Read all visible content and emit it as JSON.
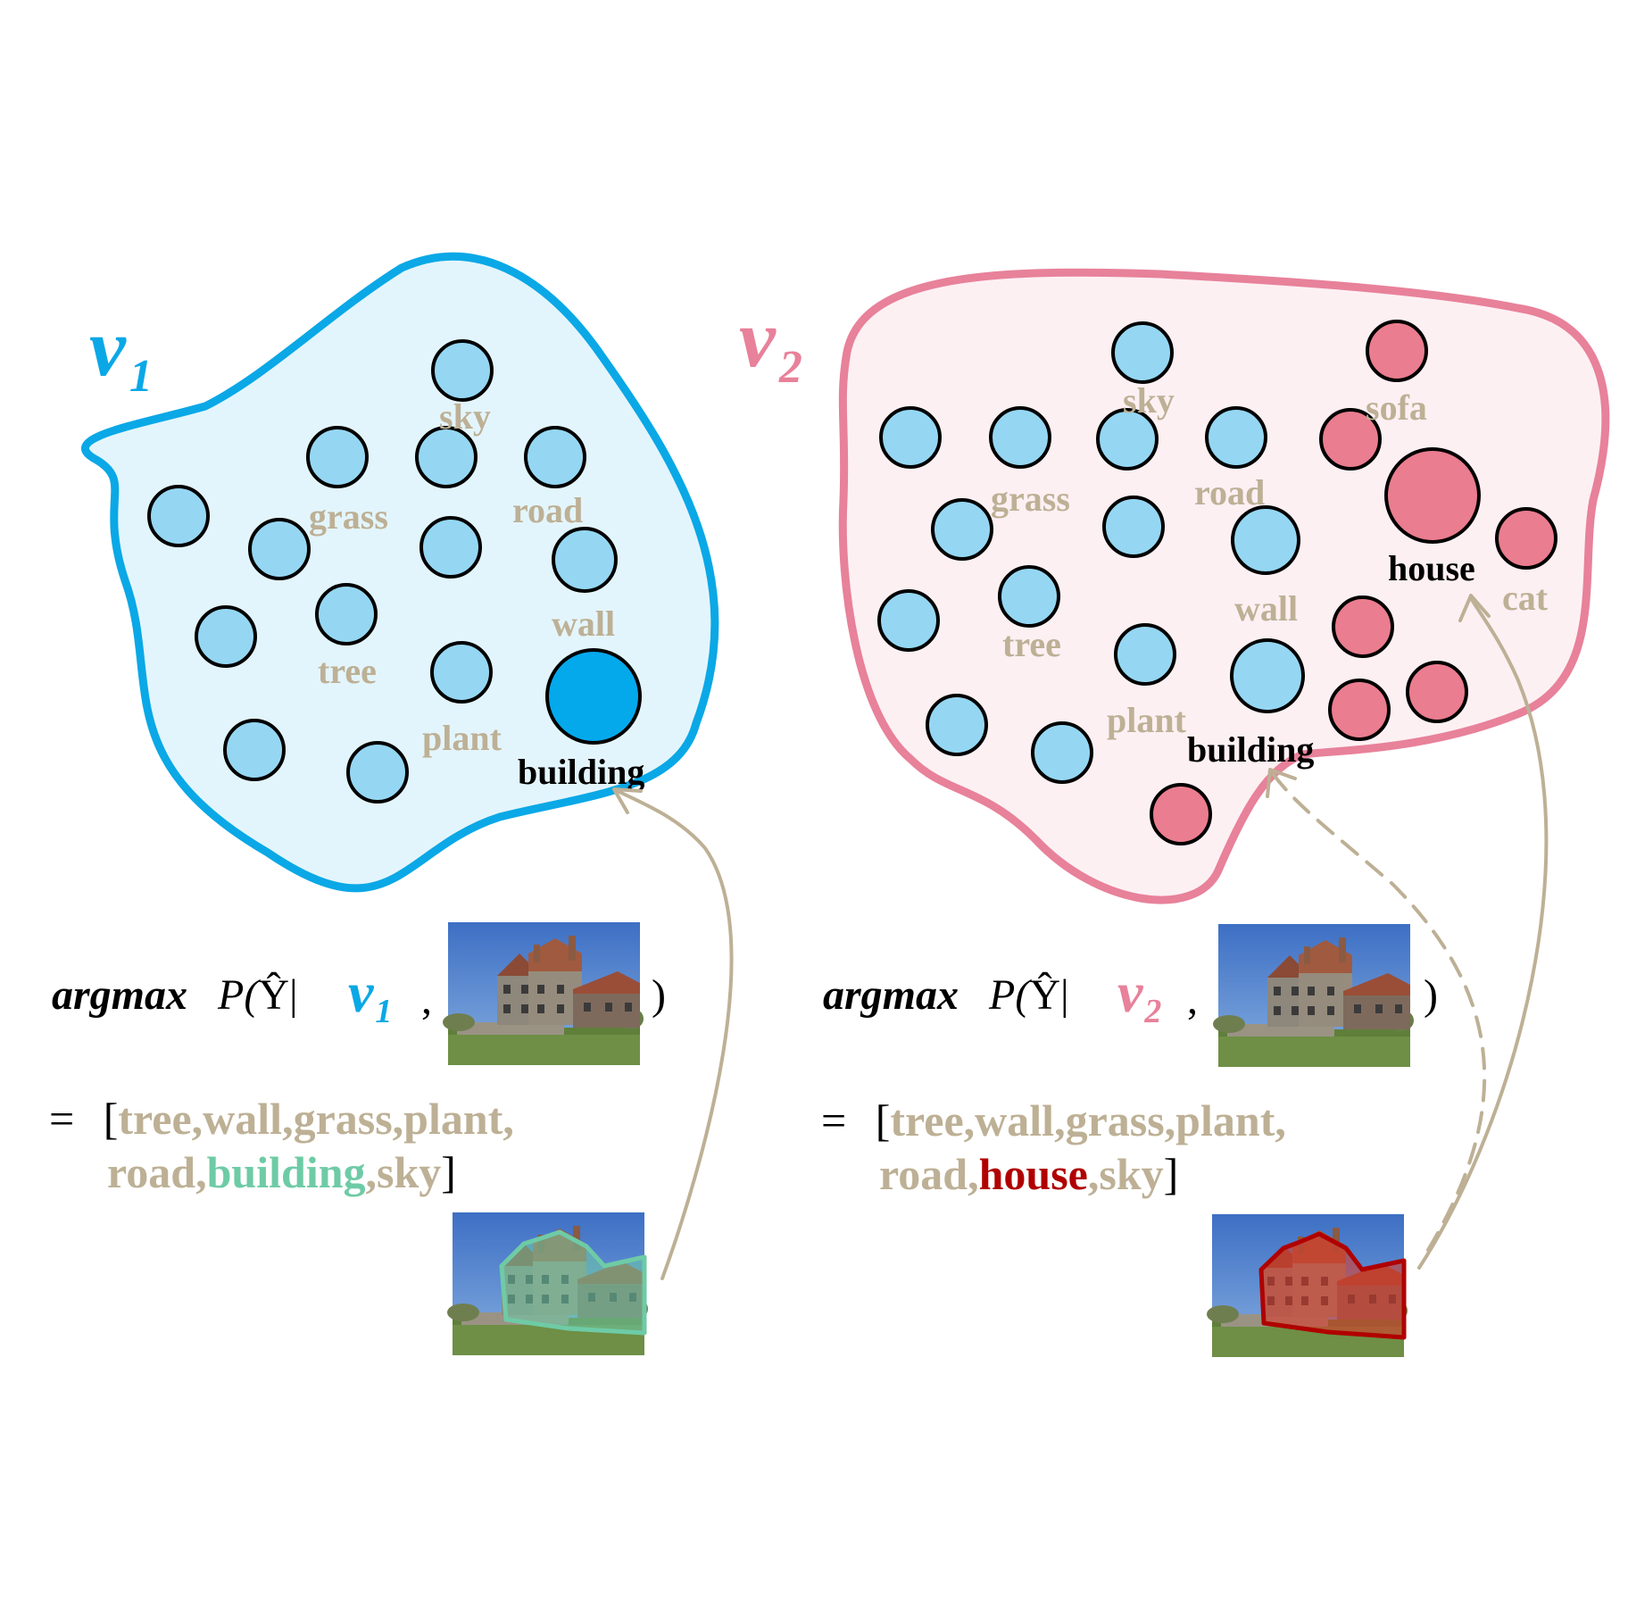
{
  "colors": {
    "blue": "#0aa8e6",
    "blue_fill": "#e3f5fc",
    "node_blue": "#95d7f3",
    "node_blue_dark": "#04a9ec",
    "pink": "#e8819a",
    "pink_fill": "#fdf0f3",
    "node_pink": "#ea7d8f",
    "tan": "#bdb095",
    "green": "#6ecba6",
    "red": "#b00000"
  },
  "vocab1": {
    "symbol": "v",
    "subscript": "1",
    "labels": {
      "sky": "sky",
      "grass": "grass",
      "road": "road",
      "wall": "wall",
      "tree": "tree",
      "plant": "plant",
      "building": "building"
    }
  },
  "vocab2": {
    "symbol": "v",
    "subscript": "2",
    "labels": {
      "sky": "sky",
      "sofa": "sofa",
      "grass": "grass",
      "road": "road",
      "house": "house",
      "cat": "cat",
      "wall": "wall",
      "tree": "tree",
      "plant": "plant",
      "building": "building"
    }
  },
  "formula1": {
    "argmax": "argmax",
    "p_open": "P(",
    "yhat": "Ŷ",
    "bar": "|",
    "v": "v",
    "sub": "1",
    "comma": ",",
    "close": ")",
    "eq": "=",
    "bracket_open": "[",
    "line1": "tree,wall,grass,plant,",
    "line2_pre": "road,",
    "highlight": "building",
    "line2_post": ",sky",
    "bracket_close": "]"
  },
  "formula2": {
    "argmax": "argmax",
    "p_open": "P(",
    "yhat": "Ŷ",
    "bar": "|",
    "v": "v",
    "sub": "2",
    "comma": ",",
    "close": ")",
    "eq": "=",
    "bracket_open": "[",
    "line1": "tree,wall,grass,plant,",
    "line2_pre": "road,",
    "highlight": "house",
    "line2_post": ",sky",
    "bracket_close": "]"
  }
}
